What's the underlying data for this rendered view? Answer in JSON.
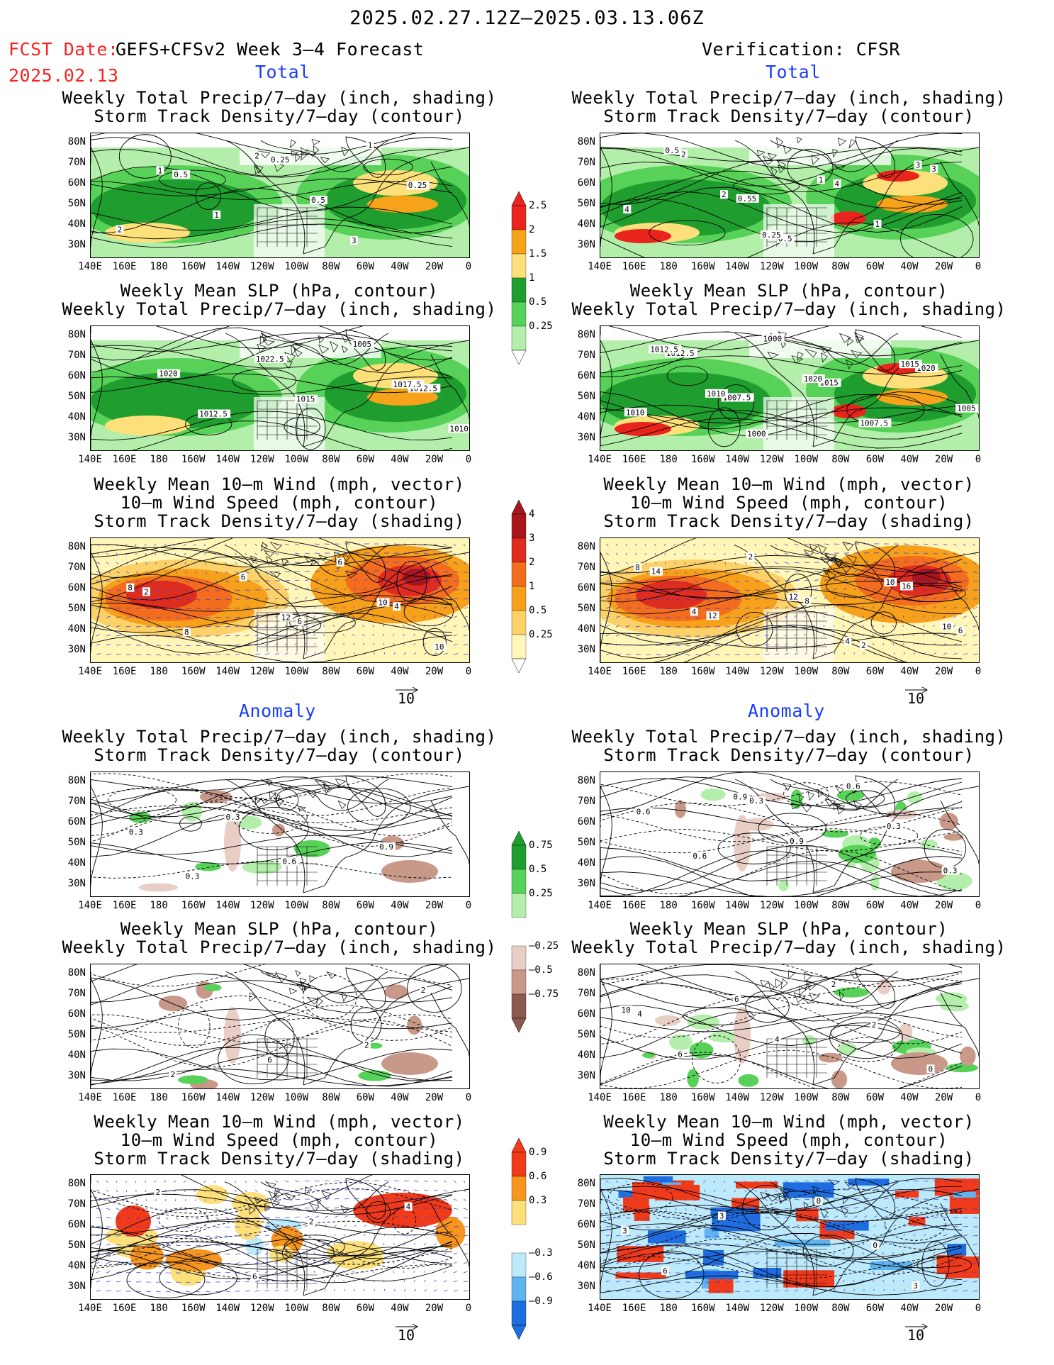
{
  "header": {
    "date_range": "2025.02.27.12Z–2025.03.13.06Z",
    "fcst_label": "FCST Date:",
    "model_label": "GEFS+CFSv2 Week 3–4 Forecast",
    "fcst_date": "2025.02.13",
    "verification_label": "Verification: CFSR"
  },
  "sections": {
    "total": "Total",
    "anomaly": "Anomaly"
  },
  "panel_titles": {
    "precip_storm": "Weekly Total Precip/7–day (inch, shading)\nStorm Track Density/7–day (contour)",
    "slp_precip": "Weekly Mean SLP (hPa, contour)\nWeekly Total Precip/7–day (inch, shading)",
    "wind_storm": "Weekly Mean 10–m Wind (mph, vector)\n10–m Wind Speed (mph, contour)\nStorm Track Density/7–day (shading)"
  },
  "axes": {
    "lat_labels": [
      "80N",
      "70N",
      "60N",
      "50N",
      "40N",
      "30N"
    ],
    "lon_labels": [
      "140E",
      "160E",
      "180",
      "160W",
      "140W",
      "120W",
      "100W",
      "80W",
      "60W",
      "40W",
      "20W",
      "0"
    ]
  },
  "vector_ref": "10",
  "colorbars": {
    "precip_total": {
      "labels": [
        "2.5",
        "2",
        "1.5",
        "1",
        "0.5",
        "0.25"
      ],
      "colors": [
        "#e8241c",
        "#f6a31b",
        "#fde07a",
        "#1f9e2f",
        "#57d158",
        "#b3efaa"
      ]
    },
    "storm_total": {
      "labels": [
        "4",
        "3",
        "2",
        "1",
        "0.5",
        "0.25"
      ],
      "colors": [
        "#a8151a",
        "#de2c1f",
        "#f46c1e",
        "#f6a01b",
        "#fcd268",
        "#fff6b8"
      ]
    },
    "precip_anom": {
      "labels": [
        "0.75",
        "0.5",
        "0.25",
        "–0.25",
        "–0.5",
        "–0.75"
      ],
      "colors": [
        "#1f9e2f",
        "#57d158",
        "#b3efaa",
        "#e9cec6",
        "#c89889",
        "#8c5a4e"
      ]
    },
    "storm_anom": {
      "labels": [
        "0.9",
        "0.6",
        "0.3",
        "–0.3",
        "–0.6",
        "–0.9"
      ],
      "colors": [
        "#f03a1a",
        "#f7951e",
        "#fde07a",
        "#bdeafb",
        "#5fb3ef",
        "#1e6ee0"
      ]
    }
  },
  "contour_labels": {
    "fc_total_precip": [
      "0.5",
      "0.25",
      "1",
      "2",
      "1",
      "0.5",
      "0.25",
      "1",
      "2",
      "3"
    ],
    "vf_total_precip": [
      "0.55",
      "4",
      "3",
      "2",
      "0.5",
      "1",
      "4",
      "2",
      "1",
      "3",
      "0.5",
      "0.25"
    ],
    "fc_total_slp": [
      "1012.5",
      "1020",
      "1022.5",
      "1005",
      "1010",
      "1012.5",
      "1015",
      "1017.5"
    ],
    "vf_total_slp": [
      "1010",
      "1007.5",
      "1015",
      "1020",
      "1012.5",
      "1000",
      "1007.5",
      "1005",
      "1010",
      "1020",
      "1015",
      "1012.5",
      "1000"
    ],
    "fc_total_wind": [
      "6",
      "4",
      "2",
      "6",
      "6",
      "10",
      "8",
      "12",
      "10",
      "8"
    ],
    "vf_total_wind": [
      "2",
      "6",
      "12",
      "8",
      "16",
      "14",
      "2",
      "4",
      "10",
      "4",
      "12",
      "10",
      "8"
    ],
    "fc_anom_precip": [
      "0.3",
      "0.6",
      "0.9",
      "0.3",
      "0.3"
    ],
    "vf_anom_precip": [
      "0.3",
      "0.6",
      "0.3",
      "0.6",
      "0.9",
      "0.3",
      "0.6",
      "0.9"
    ],
    "fc_anom_slp": [
      "2",
      "2",
      "6",
      "2"
    ],
    "vf_anom_slp": [
      "4",
      "6",
      "2",
      "0",
      "6",
      "4",
      "2",
      "10"
    ],
    "fc_anom_wind": [
      "2",
      "4",
      "2",
      "6"
    ],
    "vf_anom_wind": [
      "0",
      "3",
      "3",
      "0",
      "3",
      "6"
    ]
  }
}
